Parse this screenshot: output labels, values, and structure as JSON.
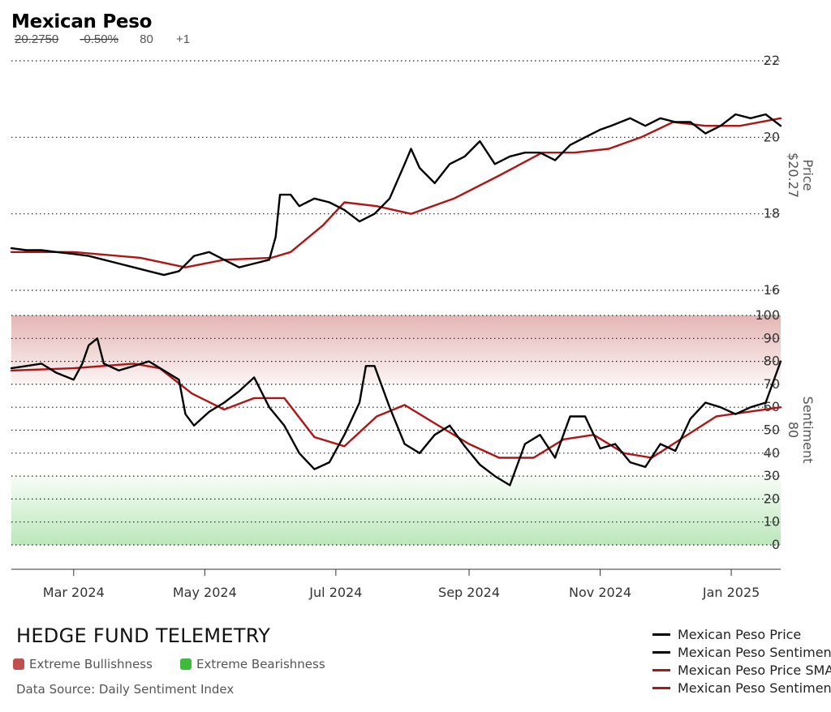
{
  "header": {
    "title": "Mexican Peso",
    "price_text": "20.2750",
    "change_text": "-0.50%",
    "sentiment_text": "80",
    "sentiment_change_text": "+1"
  },
  "footer": {
    "brand": "HEDGE FUND TELEMETRY",
    "source": "Data Source: Daily Sentiment Index",
    "zones": [
      {
        "label": "Extreme Bullishness",
        "color": "#c0504d"
      },
      {
        "label": "Extreme Bearishness",
        "color": "#3dbb3d"
      }
    ]
  },
  "legend": [
    {
      "label": "Mexican Peso Price",
      "color": "#000000"
    },
    {
      "label": "Mexican Peso Sentiment",
      "color": "#000000"
    },
    {
      "label": "Mexican Peso Price SMA",
      "color": "#b01515"
    },
    {
      "label": "Mexican Peso Sentiment SMA",
      "color": "#b01515"
    }
  ],
  "chart_data": [
    {
      "type": "line",
      "panel": "price",
      "axis_label": "Price",
      "axis_value_label": "$20.27",
      "ylim": [
        16,
        22
      ],
      "yticks": [
        16,
        18,
        20,
        22
      ],
      "x_tick_labels": [
        "Mar 2024",
        "May 2024",
        "Jul 2024",
        "Sep 2024",
        "Nov 2024",
        "Jan 2025"
      ],
      "x_tick_dates": [
        "2024-03-01",
        "2024-05-01",
        "2024-07-01",
        "2024-09-01",
        "2024-11-01",
        "2025-01-01"
      ],
      "xlim": [
        "2024-02-01",
        "2025-01-24"
      ],
      "grid": "horizontal dotted",
      "series": [
        {
          "name": "Mexican Peso Price",
          "color": "#000000",
          "x": [
            "2024-02-01",
            "2024-02-08",
            "2024-02-15",
            "2024-02-22",
            "2024-03-01",
            "2024-03-08",
            "2024-03-15",
            "2024-03-22",
            "2024-03-29",
            "2024-04-05",
            "2024-04-12",
            "2024-04-19",
            "2024-04-26",
            "2024-05-03",
            "2024-05-10",
            "2024-05-17",
            "2024-05-24",
            "2024-05-31",
            "2024-06-03",
            "2024-06-05",
            "2024-06-10",
            "2024-06-14",
            "2024-06-21",
            "2024-06-28",
            "2024-07-05",
            "2024-07-12",
            "2024-07-19",
            "2024-07-26",
            "2024-08-02",
            "2024-08-05",
            "2024-08-09",
            "2024-08-16",
            "2024-08-23",
            "2024-08-30",
            "2024-09-06",
            "2024-09-13",
            "2024-09-20",
            "2024-09-27",
            "2024-10-04",
            "2024-10-11",
            "2024-10-18",
            "2024-10-25",
            "2024-11-01",
            "2024-11-06",
            "2024-11-15",
            "2024-11-22",
            "2024-11-29",
            "2024-12-06",
            "2024-12-13",
            "2024-12-20",
            "2024-12-27",
            "2025-01-03",
            "2025-01-10",
            "2025-01-17",
            "2025-01-24"
          ],
          "y": [
            17.1,
            17.05,
            17.05,
            17.0,
            16.95,
            16.9,
            16.8,
            16.7,
            16.6,
            16.5,
            16.4,
            16.5,
            16.9,
            17.0,
            16.8,
            16.6,
            16.7,
            16.8,
            17.4,
            18.5,
            18.5,
            18.2,
            18.4,
            18.3,
            18.1,
            17.8,
            18.0,
            18.4,
            19.3,
            19.7,
            19.2,
            18.8,
            19.3,
            19.5,
            19.9,
            19.3,
            19.5,
            19.6,
            19.6,
            19.4,
            19.8,
            20.0,
            20.2,
            20.3,
            20.5,
            20.3,
            20.5,
            20.4,
            20.4,
            20.1,
            20.3,
            20.6,
            20.5,
            20.6,
            20.3
          ]
        },
        {
          "name": "Mexican Peso Price SMA",
          "color": "#b01515",
          "x": [
            "2024-02-01",
            "2024-03-01",
            "2024-04-01",
            "2024-04-22",
            "2024-05-10",
            "2024-06-01",
            "2024-06-10",
            "2024-06-25",
            "2024-07-05",
            "2024-07-20",
            "2024-08-05",
            "2024-08-25",
            "2024-09-15",
            "2024-10-05",
            "2024-10-20",
            "2024-11-05",
            "2024-11-20",
            "2024-12-05",
            "2024-12-20",
            "2025-01-05",
            "2025-01-24"
          ],
          "y": [
            17.0,
            17.0,
            16.85,
            16.6,
            16.8,
            16.85,
            17.0,
            17.7,
            18.3,
            18.2,
            18.0,
            18.4,
            19.0,
            19.6,
            19.6,
            19.7,
            20.0,
            20.4,
            20.3,
            20.3,
            20.5
          ]
        }
      ]
    },
    {
      "type": "line",
      "panel": "sentiment",
      "axis_label": "Sentiment",
      "axis_value_label": "80",
      "ylim": [
        0,
        100
      ],
      "yticks": [
        0,
        10,
        20,
        30,
        40,
        50,
        60,
        70,
        80,
        90,
        100
      ],
      "zones": [
        {
          "name": "Extreme Bullishness",
          "range": [
            70,
            100
          ],
          "color": "#c0504d"
        },
        {
          "name": "Extreme Bearishness",
          "range": [
            0,
            30
          ],
          "color": "#3dbb3d"
        }
      ],
      "x_tick_labels": [
        "Mar 2024",
        "May 2024",
        "Jul 2024",
        "Sep 2024",
        "Nov 2024",
        "Jan 2025"
      ],
      "x_tick_dates": [
        "2024-03-01",
        "2024-05-01",
        "2024-07-01",
        "2024-09-01",
        "2024-11-01",
        "2025-01-01"
      ],
      "xlim": [
        "2024-02-01",
        "2025-01-24"
      ],
      "grid": "horizontal dotted",
      "series": [
        {
          "name": "Mexican Peso Sentiment",
          "color": "#000000",
          "x": [
            "2024-02-01",
            "2024-02-08",
            "2024-02-15",
            "2024-02-22",
            "2024-03-01",
            "2024-03-05",
            "2024-03-08",
            "2024-03-12",
            "2024-03-15",
            "2024-03-22",
            "2024-03-29",
            "2024-04-05",
            "2024-04-12",
            "2024-04-19",
            "2024-04-22",
            "2024-04-26",
            "2024-05-03",
            "2024-05-10",
            "2024-05-17",
            "2024-05-24",
            "2024-05-31",
            "2024-06-07",
            "2024-06-14",
            "2024-06-21",
            "2024-06-28",
            "2024-07-05",
            "2024-07-12",
            "2024-07-15",
            "2024-07-19",
            "2024-07-26",
            "2024-08-02",
            "2024-08-09",
            "2024-08-16",
            "2024-08-23",
            "2024-08-30",
            "2024-09-06",
            "2024-09-13",
            "2024-09-20",
            "2024-09-27",
            "2024-10-04",
            "2024-10-11",
            "2024-10-18",
            "2024-10-25",
            "2024-11-01",
            "2024-11-08",
            "2024-11-15",
            "2024-11-22",
            "2024-11-29",
            "2024-12-06",
            "2024-12-13",
            "2024-12-20",
            "2024-12-27",
            "2025-01-03",
            "2025-01-10",
            "2025-01-17",
            "2025-01-24"
          ],
          "y": [
            77,
            78,
            79,
            75,
            72,
            79,
            87,
            90,
            79,
            76,
            78,
            80,
            76,
            72,
            57,
            52,
            58,
            62,
            67,
            73,
            60,
            52,
            40,
            33,
            36,
            48,
            62,
            78,
            78,
            60,
            44,
            40,
            48,
            52,
            43,
            35,
            30,
            26,
            44,
            48,
            38,
            56,
            56,
            42,
            44,
            36,
            34,
            44,
            41,
            55,
            62,
            60,
            57,
            60,
            62,
            80
          ]
        },
        {
          "name": "Mexican Peso Sentiment SMA",
          "color": "#b01515",
          "x": [
            "2024-02-01",
            "2024-03-01",
            "2024-03-29",
            "2024-04-10",
            "2024-04-25",
            "2024-05-10",
            "2024-05-24",
            "2024-06-07",
            "2024-06-21",
            "2024-07-05",
            "2024-07-20",
            "2024-08-02",
            "2024-08-16",
            "2024-09-01",
            "2024-09-15",
            "2024-10-01",
            "2024-10-15",
            "2024-10-29",
            "2024-11-12",
            "2024-11-25",
            "2024-12-10",
            "2024-12-25",
            "2025-01-24"
          ],
          "y": [
            76,
            77,
            79,
            77,
            66,
            59,
            64,
            64,
            47,
            43,
            56,
            61,
            53,
            44,
            38,
            38,
            46,
            48,
            40,
            38,
            47,
            56,
            60
          ]
        }
      ]
    }
  ]
}
